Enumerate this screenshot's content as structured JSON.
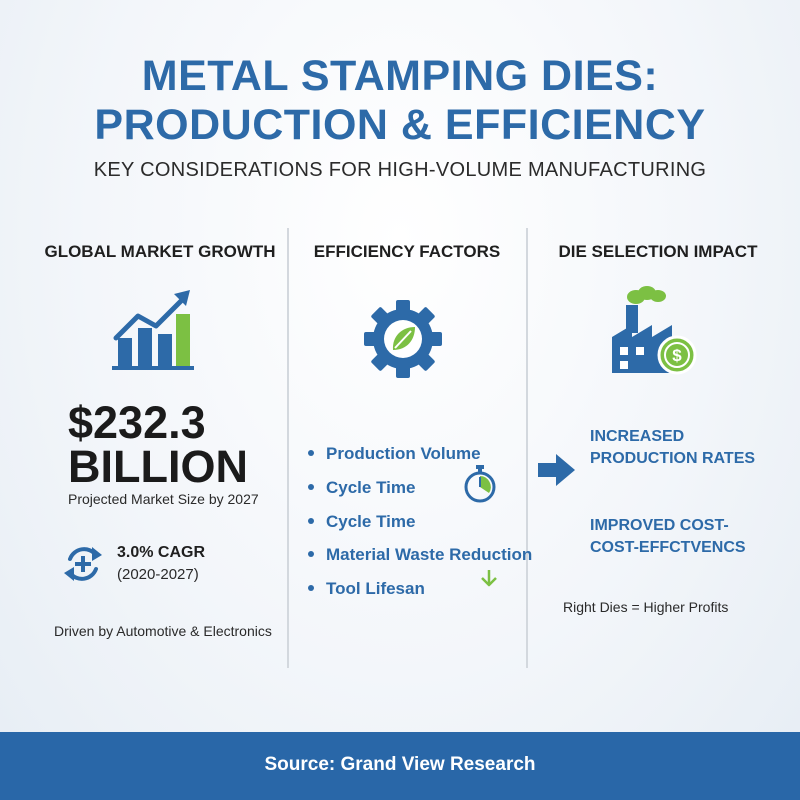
{
  "header": {
    "title_line1": "METAL STAMPING DIES:",
    "title_line2": "PRODUCTION & EFFICIENCY",
    "subtitle": "KEY CONSIDERATIONS FOR HIGH-VOLUME MANUFACTURING"
  },
  "market": {
    "heading": "GLOBAL MARKET GROWTH",
    "value_line1": "$232.3",
    "value_line2": "BILLION",
    "value_caption": "Projected Market Size by 2027",
    "cagr": "3.0% CAGR",
    "cagr_period": "(2020-2027)",
    "driver": "Driven by Automotive & Electronics",
    "icon": "growth-chart-icon",
    "cagr_icon": "cycle-plus-icon"
  },
  "efficiency": {
    "heading": "EFFICIENCY FACTORS",
    "icon": "gear-leaf-icon",
    "items": [
      "Production Volume",
      "Cycle Time",
      "Cycle Time",
      "Material Waste Reduction",
      "Tool Lifesan"
    ],
    "timer_icon": "stopwatch-icon",
    "down_icon": "down-arrow-icon"
  },
  "impact": {
    "heading": "DIE SELECTION IMPACT",
    "icon": "factory-dollar-icon",
    "arrow_icon": "right-arrow-icon",
    "benefit1_line1": "INCREASED",
    "benefit1_line2": "PRODUCTION RATES",
    "benefit2_line1": "IMPROVED COST-",
    "benefit2_line2": "COST-EFFCTVENCS",
    "tagline": "Right Dies = Higher Profits"
  },
  "footer": {
    "source": "Source: Grand View Research"
  },
  "colors": {
    "primary_blue": "#2d6aa8",
    "accent_green": "#7cc043",
    "footer_blue": "#2967a8"
  }
}
